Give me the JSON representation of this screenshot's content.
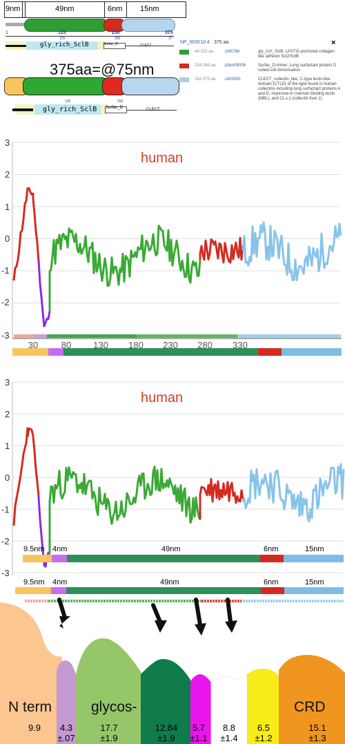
{
  "top_nm": {
    "a": "9nm",
    "b": "49nm",
    "c": "6nm",
    "d": "15nm"
  },
  "ruler": {
    "t1": "1",
    "t2": "125",
    "t3": "250",
    "t4": "375"
  },
  "ruler_small": {
    "t1": "125",
    "t2": "250",
    "t3": "37"
  },
  "conserved": {
    "gly": "gly_rich_SclB",
    "surf": "Surfac_D",
    "clect": "CLECT"
  },
  "headline": "375aa=@75nm",
  "popup": {
    "accession": "NP_003010.4",
    "length": "375 aa",
    "close": "×",
    "rows": [
      {
        "range": "44-222 aa",
        "id": "cl45768",
        "desc": "gly_rich_SclB; LPXTG-anchored collagen-like adhesin Scl2/SclB",
        "color": "#2e9e32"
      },
      {
        "range": "224-269 aa",
        "id": "pfam09006",
        "desc": "Surfac_D-trimer; Lung surfactant protein D coiled-coil trimerisation",
        "color": "#d42a20"
      },
      {
        "range": "262-375 aa",
        "id": "cd03591",
        "desc": "CLECT_collectin_like; C-type lectin-like domain (CTLD) of the type found in human collectins including lung surfactant proteins A and D, mannose-or mannan binding lectin (MBL), and CL-L1 (collectin liver 1)",
        "color": "#a7d0ec"
      }
    ]
  },
  "plot1": {
    "label": "human",
    "yticks": [
      "3",
      "2",
      "1",
      "0",
      "-1",
      "-2",
      "-3"
    ],
    "xticks": [
      "30",
      "80",
      "130",
      "180",
      "230",
      "280",
      "330"
    ]
  },
  "plot2": {
    "label": "human",
    "yticks": [
      "3",
      "2",
      "1",
      "0",
      "-1",
      "-2",
      "-3"
    ],
    "nm_labels": {
      "a": "9.5nm",
      "b": "4nm",
      "c": "49nm",
      "d": "6nm",
      "e": "15nm"
    }
  },
  "nm_row3": {
    "a": "9.5nm",
    "b": "4nm",
    "c": "49nm",
    "d": "6nm",
    "e": "15nm"
  },
  "schematic": {
    "n_term": "N term",
    "glycos": "glycos-",
    "crd": "CRD",
    "values": [
      {
        "v": "9.9",
        "e": ""
      },
      {
        "v": "4.3",
        "e": "±.07"
      },
      {
        "v": "17.7",
        "e": "±1.9"
      },
      {
        "v": "12.84",
        "e": "±1.9"
      },
      {
        "v": "5.7",
        "e": "±1.1"
      },
      {
        "v": "8.8",
        "e": "±1.4"
      },
      {
        "v": "6.5",
        "e": "±1.2"
      },
      {
        "v": "15.1",
        "e": "±1.3"
      }
    ]
  }
}
